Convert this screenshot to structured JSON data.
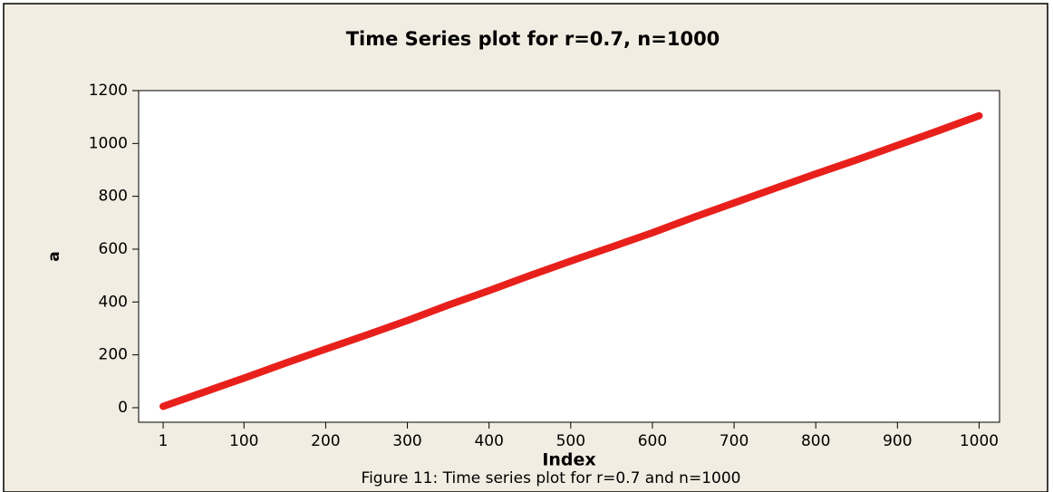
{
  "chart_data": {
    "type": "line",
    "title": "Time Series plot for r=0.7, n=1000",
    "xlabel": "Index",
    "ylabel": "a",
    "caption": "Figure 11: Time series plot for r=0.7 and n=1000",
    "x": [
      1,
      50,
      100,
      150,
      200,
      250,
      300,
      350,
      400,
      450,
      500,
      550,
      600,
      650,
      700,
      750,
      800,
      850,
      900,
      950,
      1000
    ],
    "series": [
      {
        "name": "a",
        "color": "#e8201c",
        "values": [
          5,
          58,
          112,
          168,
          222,
          275,
          330,
          388,
          443,
          500,
          555,
          608,
          662,
          720,
          775,
          830,
          885,
          938,
          993,
          1048,
          1105
        ]
      }
    ],
    "xlim": [
      -29,
      1025
    ],
    "ylim": [
      -55,
      1200
    ],
    "xticks": [
      1,
      100,
      200,
      300,
      400,
      500,
      600,
      700,
      800,
      900,
      1000
    ],
    "yticks": [
      0,
      200,
      400,
      600,
      800,
      1000,
      1200
    ]
  }
}
